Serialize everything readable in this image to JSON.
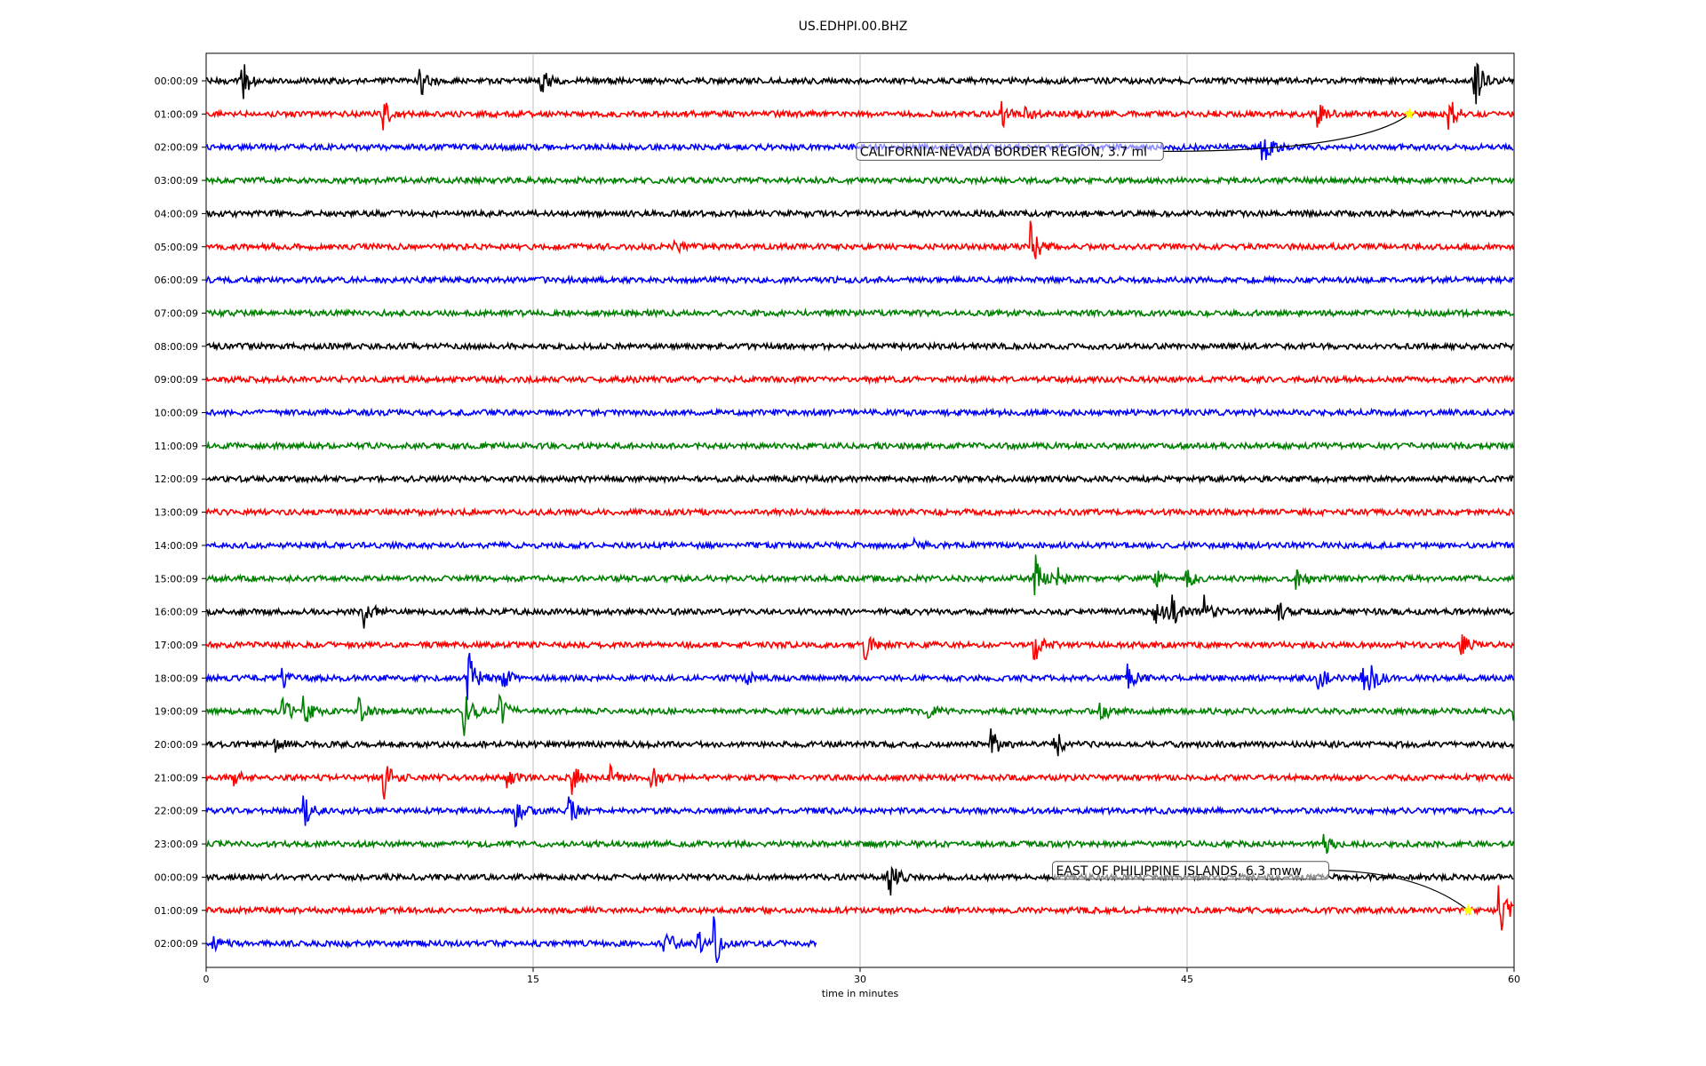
{
  "chart_data": {
    "type": "line",
    "title": "US.EDHPI.00.BHZ",
    "xlabel": "time in minutes",
    "ylabel": "",
    "xlim": [
      0,
      60
    ],
    "x_ticks": [
      "0",
      "15",
      "30",
      "45",
      "60"
    ],
    "grid": "vertical",
    "row_labels": [
      "00:00:09",
      "01:00:09",
      "02:00:09",
      "03:00:09",
      "04:00:09",
      "05:00:09",
      "06:00:09",
      "07:00:09",
      "08:00:09",
      "09:00:09",
      "10:00:09",
      "11:00:09",
      "12:00:09",
      "13:00:09",
      "14:00:09",
      "15:00:09",
      "16:00:09",
      "17:00:09",
      "18:00:09",
      "19:00:09",
      "20:00:09",
      "21:00:09",
      "22:00:09",
      "23:00:09",
      "00:00:09",
      "01:00:09",
      "02:00:09"
    ],
    "color_cycle": [
      "#000000",
      "#ff0000",
      "#0000ff",
      "#008000"
    ],
    "last_row_end_minute": 28,
    "events": [
      {
        "row": 0,
        "minute": 1.6,
        "amp": 1.0
      },
      {
        "row": 0,
        "minute": 9.8,
        "amp": 0.8
      },
      {
        "row": 0,
        "minute": 15.3,
        "amp": 0.7
      },
      {
        "row": 0,
        "minute": 58.2,
        "amp": 1.0
      },
      {
        "row": 1,
        "minute": 8.1,
        "amp": 0.6
      },
      {
        "row": 1,
        "minute": 36.5,
        "amp": 0.6
      },
      {
        "row": 1,
        "minute": 37.5,
        "amp": 0.4
      },
      {
        "row": 1,
        "minute": 40.0,
        "amp": 0.3
      },
      {
        "row": 1,
        "minute": 51.0,
        "amp": 0.5
      },
      {
        "row": 1,
        "minute": 57.0,
        "amp": 0.7
      },
      {
        "row": 2,
        "minute": 48.4,
        "amp": 1.0
      },
      {
        "row": 5,
        "minute": 21.5,
        "amp": 0.3
      },
      {
        "row": 5,
        "minute": 37.8,
        "amp": 1.0
      },
      {
        "row": 14,
        "minute": 32.5,
        "amp": 0.2
      },
      {
        "row": 15,
        "minute": 38.0,
        "amp": 1.2
      },
      {
        "row": 15,
        "minute": 39.0,
        "amp": 0.5
      },
      {
        "row": 15,
        "minute": 43.5,
        "amp": 0.4
      },
      {
        "row": 15,
        "minute": 45.0,
        "amp": 0.4
      },
      {
        "row": 15,
        "minute": 50.0,
        "amp": 0.6
      },
      {
        "row": 16,
        "minute": 7.2,
        "amp": 1.0
      },
      {
        "row": 16,
        "minute": 43.5,
        "amp": 0.6
      },
      {
        "row": 16,
        "minute": 44.2,
        "amp": 1.0
      },
      {
        "row": 16,
        "minute": 45.8,
        "amp": 0.9
      },
      {
        "row": 16,
        "minute": 49.2,
        "amp": 0.4
      },
      {
        "row": 17,
        "minute": 30.2,
        "amp": 0.7
      },
      {
        "row": 17,
        "minute": 38.0,
        "amp": 0.7
      },
      {
        "row": 17,
        "minute": 57.5,
        "amp": 0.5
      },
      {
        "row": 18,
        "minute": 3.5,
        "amp": 0.4
      },
      {
        "row": 18,
        "minute": 12.0,
        "amp": 1.2
      },
      {
        "row": 18,
        "minute": 13.6,
        "amp": 0.5
      },
      {
        "row": 18,
        "minute": 24.8,
        "amp": 0.3
      },
      {
        "row": 18,
        "minute": 42.3,
        "amp": 0.5
      },
      {
        "row": 18,
        "minute": 51.0,
        "amp": 0.6
      },
      {
        "row": 18,
        "minute": 53.0,
        "amp": 0.6
      },
      {
        "row": 18,
        "minute": 53.4,
        "amp": 0.7
      },
      {
        "row": 19,
        "minute": 3.5,
        "amp": 0.6
      },
      {
        "row": 19,
        "minute": 4.5,
        "amp": 0.6
      },
      {
        "row": 19,
        "minute": 7.0,
        "amp": 0.5
      },
      {
        "row": 19,
        "minute": 11.8,
        "amp": 1.2
      },
      {
        "row": 19,
        "minute": 13.5,
        "amp": 0.6
      },
      {
        "row": 19,
        "minute": 33.0,
        "amp": 0.5
      },
      {
        "row": 19,
        "minute": 41.0,
        "amp": 0.5
      },
      {
        "row": 19,
        "minute": 60.0,
        "amp": 0.5
      },
      {
        "row": 20,
        "minute": 3.1,
        "amp": 0.4
      },
      {
        "row": 20,
        "minute": 36.0,
        "amp": 0.7
      },
      {
        "row": 20,
        "minute": 38.9,
        "amp": 0.8
      },
      {
        "row": 21,
        "minute": 1.3,
        "amp": 0.3
      },
      {
        "row": 21,
        "minute": 8.1,
        "amp": 1.0
      },
      {
        "row": 21,
        "minute": 13.8,
        "amp": 0.5
      },
      {
        "row": 21,
        "minute": 16.8,
        "amp": 0.6
      },
      {
        "row": 21,
        "minute": 18.5,
        "amp": 0.5
      },
      {
        "row": 21,
        "minute": 20.4,
        "amp": 0.6
      },
      {
        "row": 22,
        "minute": 4.5,
        "amp": 0.6
      },
      {
        "row": 22,
        "minute": 14.2,
        "amp": 0.6
      },
      {
        "row": 22,
        "minute": 16.6,
        "amp": 0.7
      },
      {
        "row": 23,
        "minute": 51.3,
        "amp": 0.4
      },
      {
        "row": 24,
        "minute": 31.3,
        "amp": 1.0
      },
      {
        "row": 25,
        "minute": 59.3,
        "amp": 1.2
      },
      {
        "row": 26,
        "minute": 0.3,
        "amp": 0.3
      },
      {
        "row": 26,
        "minute": 21.0,
        "amp": 0.8
      },
      {
        "row": 26,
        "minute": 22.5,
        "amp": 0.6
      },
      {
        "row": 26,
        "minute": 23.3,
        "amp": 1.0
      }
    ],
    "annotations": [
      {
        "text": "CALIFORNIA-NEVADA BORDER REGION, 3.7 ml",
        "row": 1,
        "minute": 55.2,
        "star_color": "#ffff00"
      },
      {
        "text": "EAST OF PHILIPPINE ISLANDS, 6.3 mww",
        "row": 25,
        "minute": 57.9,
        "star_color": "#ffff00"
      }
    ]
  }
}
